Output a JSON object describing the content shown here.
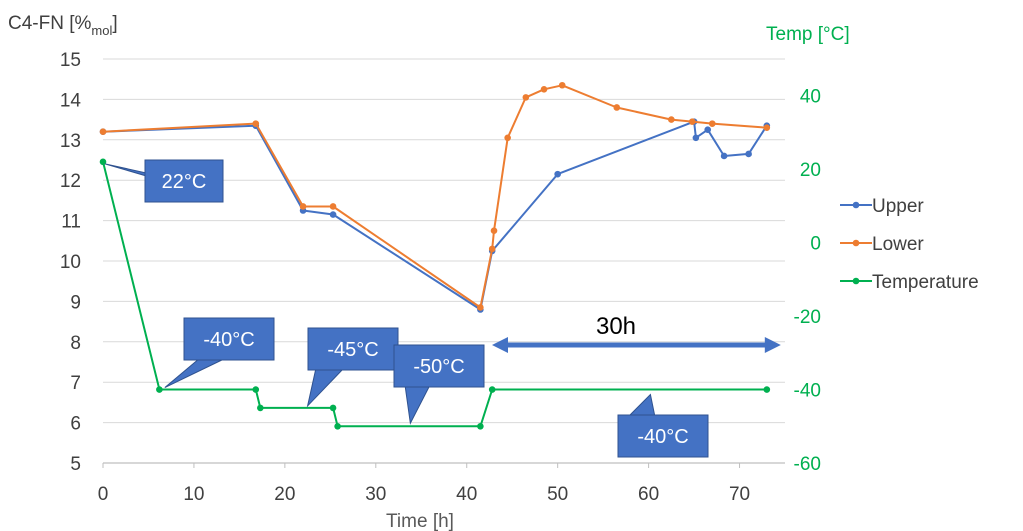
{
  "colors": {
    "upper": "#4472C4",
    "lower": "#ED7D31",
    "temperature": "#00B050",
    "callout": "#4472C4",
    "callout_border": "#2F528F",
    "axis_text": "#595959"
  },
  "chart_data": {
    "type": "line",
    "title": "",
    "xlabel": "Time [h]",
    "ylabel_left": "C4-FN [%mol]",
    "ylabel_left_main": "C4-FN [%",
    "ylabel_left_sub": "mol",
    "ylabel_left_close": "]",
    "ylabel_right": "Temp [°C]",
    "xlim": [
      0,
      75
    ],
    "ylim_left": [
      5,
      15
    ],
    "ylim_right": [
      -60,
      50
    ],
    "x_ticks": [
      "0",
      "10",
      "20",
      "30",
      "40",
      "50",
      "60",
      "70"
    ],
    "y_left_ticks": [
      "5",
      "6",
      "7",
      "8",
      "9",
      "10",
      "11",
      "12",
      "13",
      "14",
      "15"
    ],
    "y_right_ticks": [
      "-60",
      "-40",
      "-20",
      "0",
      "20",
      "40"
    ],
    "grid": "horizontal",
    "legend_position": "right",
    "series": [
      {
        "name": "Upper",
        "axis": "left",
        "x": [
          0,
          16.8,
          22,
          25.3,
          41.5,
          42.8,
          50,
          65,
          65.2,
          66.5,
          68.3,
          71,
          73
        ],
        "y": [
          13.2,
          13.35,
          11.25,
          11.15,
          8.8,
          10.25,
          12.15,
          13.45,
          13.05,
          13.25,
          12.6,
          12.65,
          13.35
        ]
      },
      {
        "name": "Lower",
        "axis": "left",
        "x": [
          0,
          16.8,
          22,
          25.3,
          41.5,
          42.8,
          43,
          44.5,
          46.5,
          48.5,
          50.5,
          56.5,
          62.5,
          64.8,
          67,
          73
        ],
        "y": [
          13.2,
          13.4,
          11.35,
          11.35,
          8.85,
          10.3,
          10.75,
          13.05,
          14.05,
          14.25,
          14.35,
          13.8,
          13.5,
          13.45,
          13.4,
          13.3
        ]
      },
      {
        "name": "Temperature",
        "axis": "right",
        "x": [
          0,
          6.2,
          16.8,
          17.3,
          25.3,
          25.8,
          41.5,
          42.8,
          73
        ],
        "y": [
          22,
          -40,
          -40,
          -45,
          -45,
          -50,
          -50,
          -40,
          -40
        ]
      }
    ],
    "annotations": [
      {
        "text": "22°C",
        "x": 0,
        "y_right": 22
      },
      {
        "text": "-40°C",
        "x": 9,
        "y_right": -40
      },
      {
        "text": "-45°C",
        "x": 22,
        "y_right": -45
      },
      {
        "text": "-50°C",
        "x": 35,
        "y_right": -50
      },
      {
        "text": "-40°C",
        "x": 58,
        "y_right": -40
      }
    ],
    "span_arrow": {
      "label": "30h",
      "x_start": 43,
      "x_end": 73
    }
  }
}
